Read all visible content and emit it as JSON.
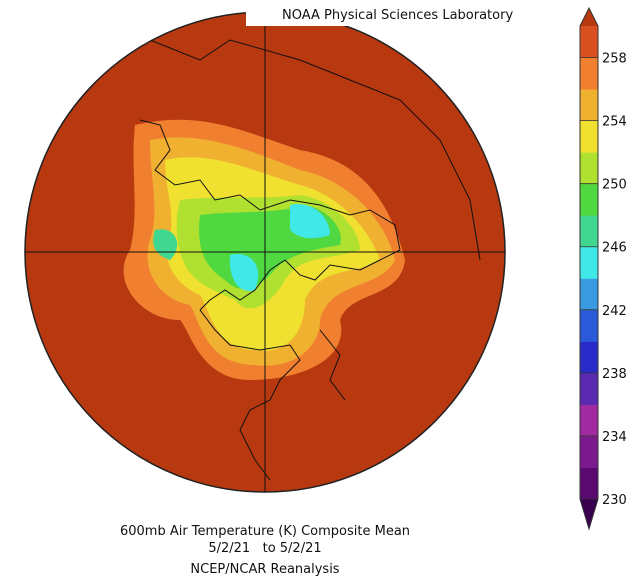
{
  "header": {
    "title": "NOAA Physical Sciences Laboratory"
  },
  "caption": {
    "line1": "600mb Air Temperature (K) Composite Mean",
    "line2": "5/2/21   to 5/2/21",
    "line3": "NCEP/NCAR Reanalysis"
  },
  "colorbar": {
    "lim": [
      230,
      260
    ],
    "ticks": [
      230,
      234,
      238,
      242,
      246,
      250,
      254,
      258
    ],
    "colors": [
      "#5a0a6e",
      "#7a1a8e",
      "#a02aa0",
      "#5a2ab0",
      "#2a2ac8",
      "#2a5ad8",
      "#3a9ae0",
      "#40e8e8",
      "#40d890",
      "#50d840",
      "#b0e030",
      "#f0e030",
      "#f0b030",
      "#f08030",
      "#d85020"
    ],
    "over_color": "#b8380f",
    "under_color": "#3a0050"
  }
}
